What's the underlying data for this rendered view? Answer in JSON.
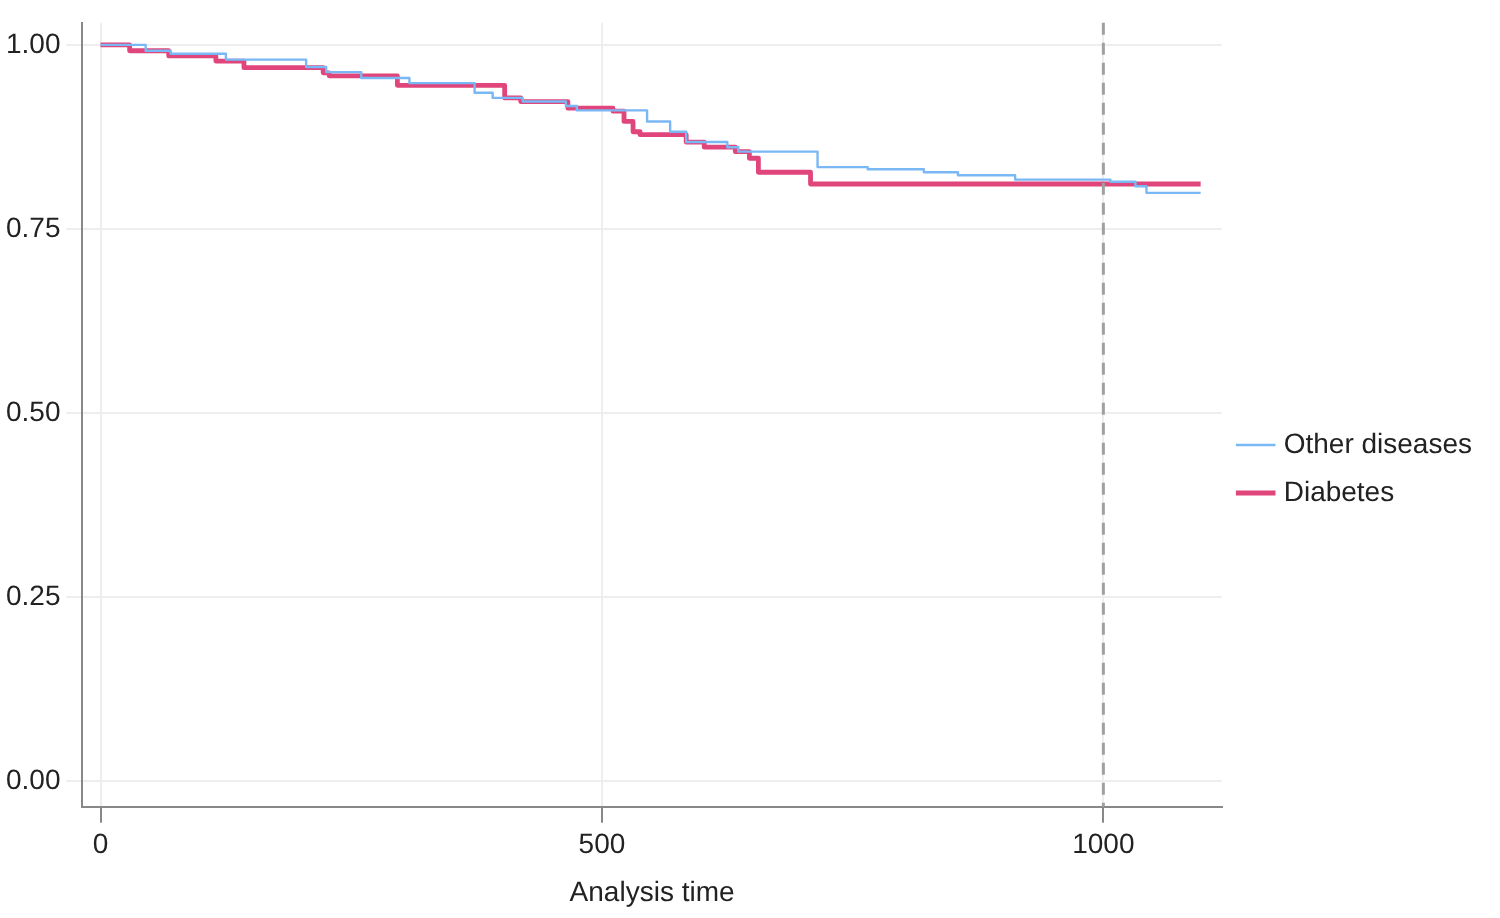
{
  "chart_data": {
    "type": "step",
    "xlabel": "Analysis time",
    "xlim": [
      -18,
      1118
    ],
    "xticks": [
      0,
      500,
      1000
    ],
    "ylim": [
      -0.035,
      1.03
    ],
    "yticks": [
      {
        "value": 0,
        "label": "0.00"
      },
      {
        "value": 0.25,
        "label": "0.25"
      },
      {
        "value": 0.5,
        "label": "0.50"
      },
      {
        "value": 0.75,
        "label": "0.75"
      },
      {
        "value": 1,
        "label": "1.00"
      }
    ],
    "grid": true,
    "legend": "right",
    "line_style": "solid",
    "marker": "none",
    "ref_lines": [
      {
        "axis": "x",
        "value": 1000,
        "color": "#a0a0a0",
        "line_style": "dashed"
      }
    ],
    "series": [
      {
        "name": "Other diseases",
        "color": "#7ab8f5",
        "x": [
          0,
          45,
          70,
          125,
          205,
          225,
          260,
          308,
          373,
          391,
          421,
          464,
          475,
          545,
          568,
          584,
          625,
          636,
          715,
          765,
          821,
          855,
          912,
          1007,
          1032,
          1043,
          1097
        ],
        "values": [
          1.0,
          0.992,
          0.988,
          0.98,
          0.97,
          0.963,
          0.955,
          0.948,
          0.935,
          0.928,
          0.923,
          0.917,
          0.911,
          0.896,
          0.882,
          0.868,
          0.861,
          0.855,
          0.834,
          0.831,
          0.827,
          0.823,
          0.817,
          0.814,
          0.808,
          0.799,
          0.799
        ]
      },
      {
        "name": "Diabetes",
        "color": "#e0457b",
        "x": [
          0,
          29,
          68,
          115,
          143,
          222,
          228,
          296,
          403,
          419,
          466,
          511,
          522,
          531,
          538,
          584,
          602,
          633,
          647,
          656,
          708,
          1097
        ],
        "values": [
          1.0,
          0.992,
          0.985,
          0.978,
          0.969,
          0.962,
          0.958,
          0.945,
          0.928,
          0.923,
          0.914,
          0.91,
          0.896,
          0.882,
          0.878,
          0.868,
          0.861,
          0.855,
          0.846,
          0.827,
          0.811,
          0.811
        ]
      }
    ]
  }
}
